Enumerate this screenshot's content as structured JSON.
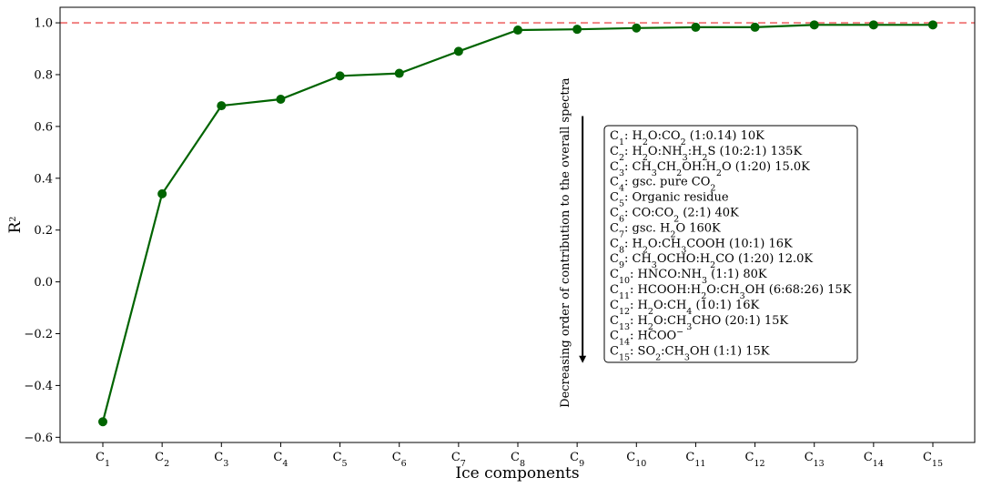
{
  "chart_data": {
    "type": "line",
    "xlabel": "Ice components",
    "ylabel": {
      "base": "R",
      "sup": "2"
    },
    "ylim": [
      -0.62,
      1.06
    ],
    "yticks": [
      {
        "value": -0.6,
        "label": "−0.6"
      },
      {
        "value": -0.4,
        "label": "−0.4"
      },
      {
        "value": -0.2,
        "label": "−0.2"
      },
      {
        "value": 0.0,
        "label": "0.0"
      },
      {
        "value": 0.2,
        "label": "0.2"
      },
      {
        "value": 0.4,
        "label": "0.4"
      },
      {
        "value": 0.6,
        "label": "0.6"
      },
      {
        "value": 0.8,
        "label": "0.8"
      },
      {
        "value": 1.0,
        "label": "1.0"
      }
    ],
    "categories": [
      {
        "base": "C",
        "sub": "1"
      },
      {
        "base": "C",
        "sub": "2"
      },
      {
        "base": "C",
        "sub": "3"
      },
      {
        "base": "C",
        "sub": "4"
      },
      {
        "base": "C",
        "sub": "5"
      },
      {
        "base": "C",
        "sub": "6"
      },
      {
        "base": "C",
        "sub": "7"
      },
      {
        "base": "C",
        "sub": "8"
      },
      {
        "base": "C",
        "sub": "9"
      },
      {
        "base": "C",
        "sub": "10"
      },
      {
        "base": "C",
        "sub": "11"
      },
      {
        "base": "C",
        "sub": "12"
      },
      {
        "base": "C",
        "sub": "13"
      },
      {
        "base": "C",
        "sub": "14"
      },
      {
        "base": "C",
        "sub": "15"
      }
    ],
    "series": [
      {
        "values": [
          -0.54,
          0.34,
          0.68,
          0.705,
          0.795,
          0.805,
          0.89,
          0.972,
          0.975,
          0.98,
          0.983,
          0.983,
          0.992,
          0.992,
          0.992
        ],
        "color": "#006400"
      }
    ],
    "reference_line": {
      "y": 1.0,
      "color": "#f08080",
      "style": "dashed"
    },
    "annotation": {
      "text": "Decreasing order of contribution to the overall spectra",
      "arrow_direction": "down",
      "arrow_x_index": 8,
      "arrow_from": 0.64,
      "arrow_to": -0.31
    },
    "legend": {
      "placement": "center-right",
      "entries": [
        [
          {
            "t": "C"
          },
          {
            "t": "1",
            "sub": true
          },
          {
            "t": ": H"
          },
          {
            "t": "2",
            "sub": true
          },
          {
            "t": "O:CO"
          },
          {
            "t": "2",
            "sub": true
          },
          {
            "t": " (1:0.14) 10K"
          }
        ],
        [
          {
            "t": "C"
          },
          {
            "t": "2",
            "sub": true
          },
          {
            "t": ": H"
          },
          {
            "t": "2",
            "sub": true
          },
          {
            "t": "O:NH"
          },
          {
            "t": "3",
            "sub": true
          },
          {
            "t": ":H"
          },
          {
            "t": "2",
            "sub": true
          },
          {
            "t": "S (10:2:1) 135K"
          }
        ],
        [
          {
            "t": "C"
          },
          {
            "t": "3",
            "sub": true
          },
          {
            "t": ": CH"
          },
          {
            "t": "3",
            "sub": true
          },
          {
            "t": "CH"
          },
          {
            "t": "2",
            "sub": true
          },
          {
            "t": "OH:H"
          },
          {
            "t": "2",
            "sub": true
          },
          {
            "t": "O (1:20) 15.0K"
          }
        ],
        [
          {
            "t": "C"
          },
          {
            "t": "4",
            "sub": true
          },
          {
            "t": ": gsc. pure CO"
          },
          {
            "t": "2",
            "sub": true
          }
        ],
        [
          {
            "t": "C"
          },
          {
            "t": "5",
            "sub": true
          },
          {
            "t": ": Organic residue"
          }
        ],
        [
          {
            "t": "C"
          },
          {
            "t": "6",
            "sub": true
          },
          {
            "t": ": CO:CO"
          },
          {
            "t": "2",
            "sub": true
          },
          {
            "t": " (2:1) 40K"
          }
        ],
        [
          {
            "t": "C"
          },
          {
            "t": "7",
            "sub": true
          },
          {
            "t": ": gsc. H"
          },
          {
            "t": "2",
            "sub": true
          },
          {
            "t": "O 160K"
          }
        ],
        [
          {
            "t": "C"
          },
          {
            "t": "8",
            "sub": true
          },
          {
            "t": ": H"
          },
          {
            "t": "2",
            "sub": true
          },
          {
            "t": "O:CH"
          },
          {
            "t": "3",
            "sub": true
          },
          {
            "t": "COOH (10:1) 16K"
          }
        ],
        [
          {
            "t": "C"
          },
          {
            "t": "9",
            "sub": true
          },
          {
            "t": ": CH"
          },
          {
            "t": "3",
            "sub": true
          },
          {
            "t": "OCHO:H"
          },
          {
            "t": "2",
            "sub": true
          },
          {
            "t": "CO (1:20) 12.0K"
          }
        ],
        [
          {
            "t": "C"
          },
          {
            "t": "10",
            "sub": true
          },
          {
            "t": ": HNCO:NH"
          },
          {
            "t": "3",
            "sub": true
          },
          {
            "t": " (1:1) 80K"
          }
        ],
        [
          {
            "t": "C"
          },
          {
            "t": "11",
            "sub": true
          },
          {
            "t": ": HCOOH:H"
          },
          {
            "t": "2",
            "sub": true
          },
          {
            "t": "O:CH"
          },
          {
            "t": "3",
            "sub": true
          },
          {
            "t": "OH (6:68:26) 15K"
          }
        ],
        [
          {
            "t": "C"
          },
          {
            "t": "12",
            "sub": true
          },
          {
            "t": ": H"
          },
          {
            "t": "2",
            "sub": true
          },
          {
            "t": "O:CH"
          },
          {
            "t": "4",
            "sub": true
          },
          {
            "t": " (10:1) 16K"
          }
        ],
        [
          {
            "t": "C"
          },
          {
            "t": "13",
            "sub": true
          },
          {
            "t": ": H"
          },
          {
            "t": "2",
            "sub": true
          },
          {
            "t": "O:CH"
          },
          {
            "t": "3",
            "sub": true
          },
          {
            "t": "CHO (20:1) 15K"
          }
        ],
        [
          {
            "t": "C"
          },
          {
            "t": "14",
            "sub": true
          },
          {
            "t": ": HCOO"
          },
          {
            "t": "−",
            "sup": true
          }
        ],
        [
          {
            "t": "C"
          },
          {
            "t": "15",
            "sub": true
          },
          {
            "t": ": SO"
          },
          {
            "t": "2",
            "sub": true
          },
          {
            "t": ":CH"
          },
          {
            "t": "3",
            "sub": true
          },
          {
            "t": "OH (1:1) 15K"
          }
        ]
      ]
    }
  }
}
